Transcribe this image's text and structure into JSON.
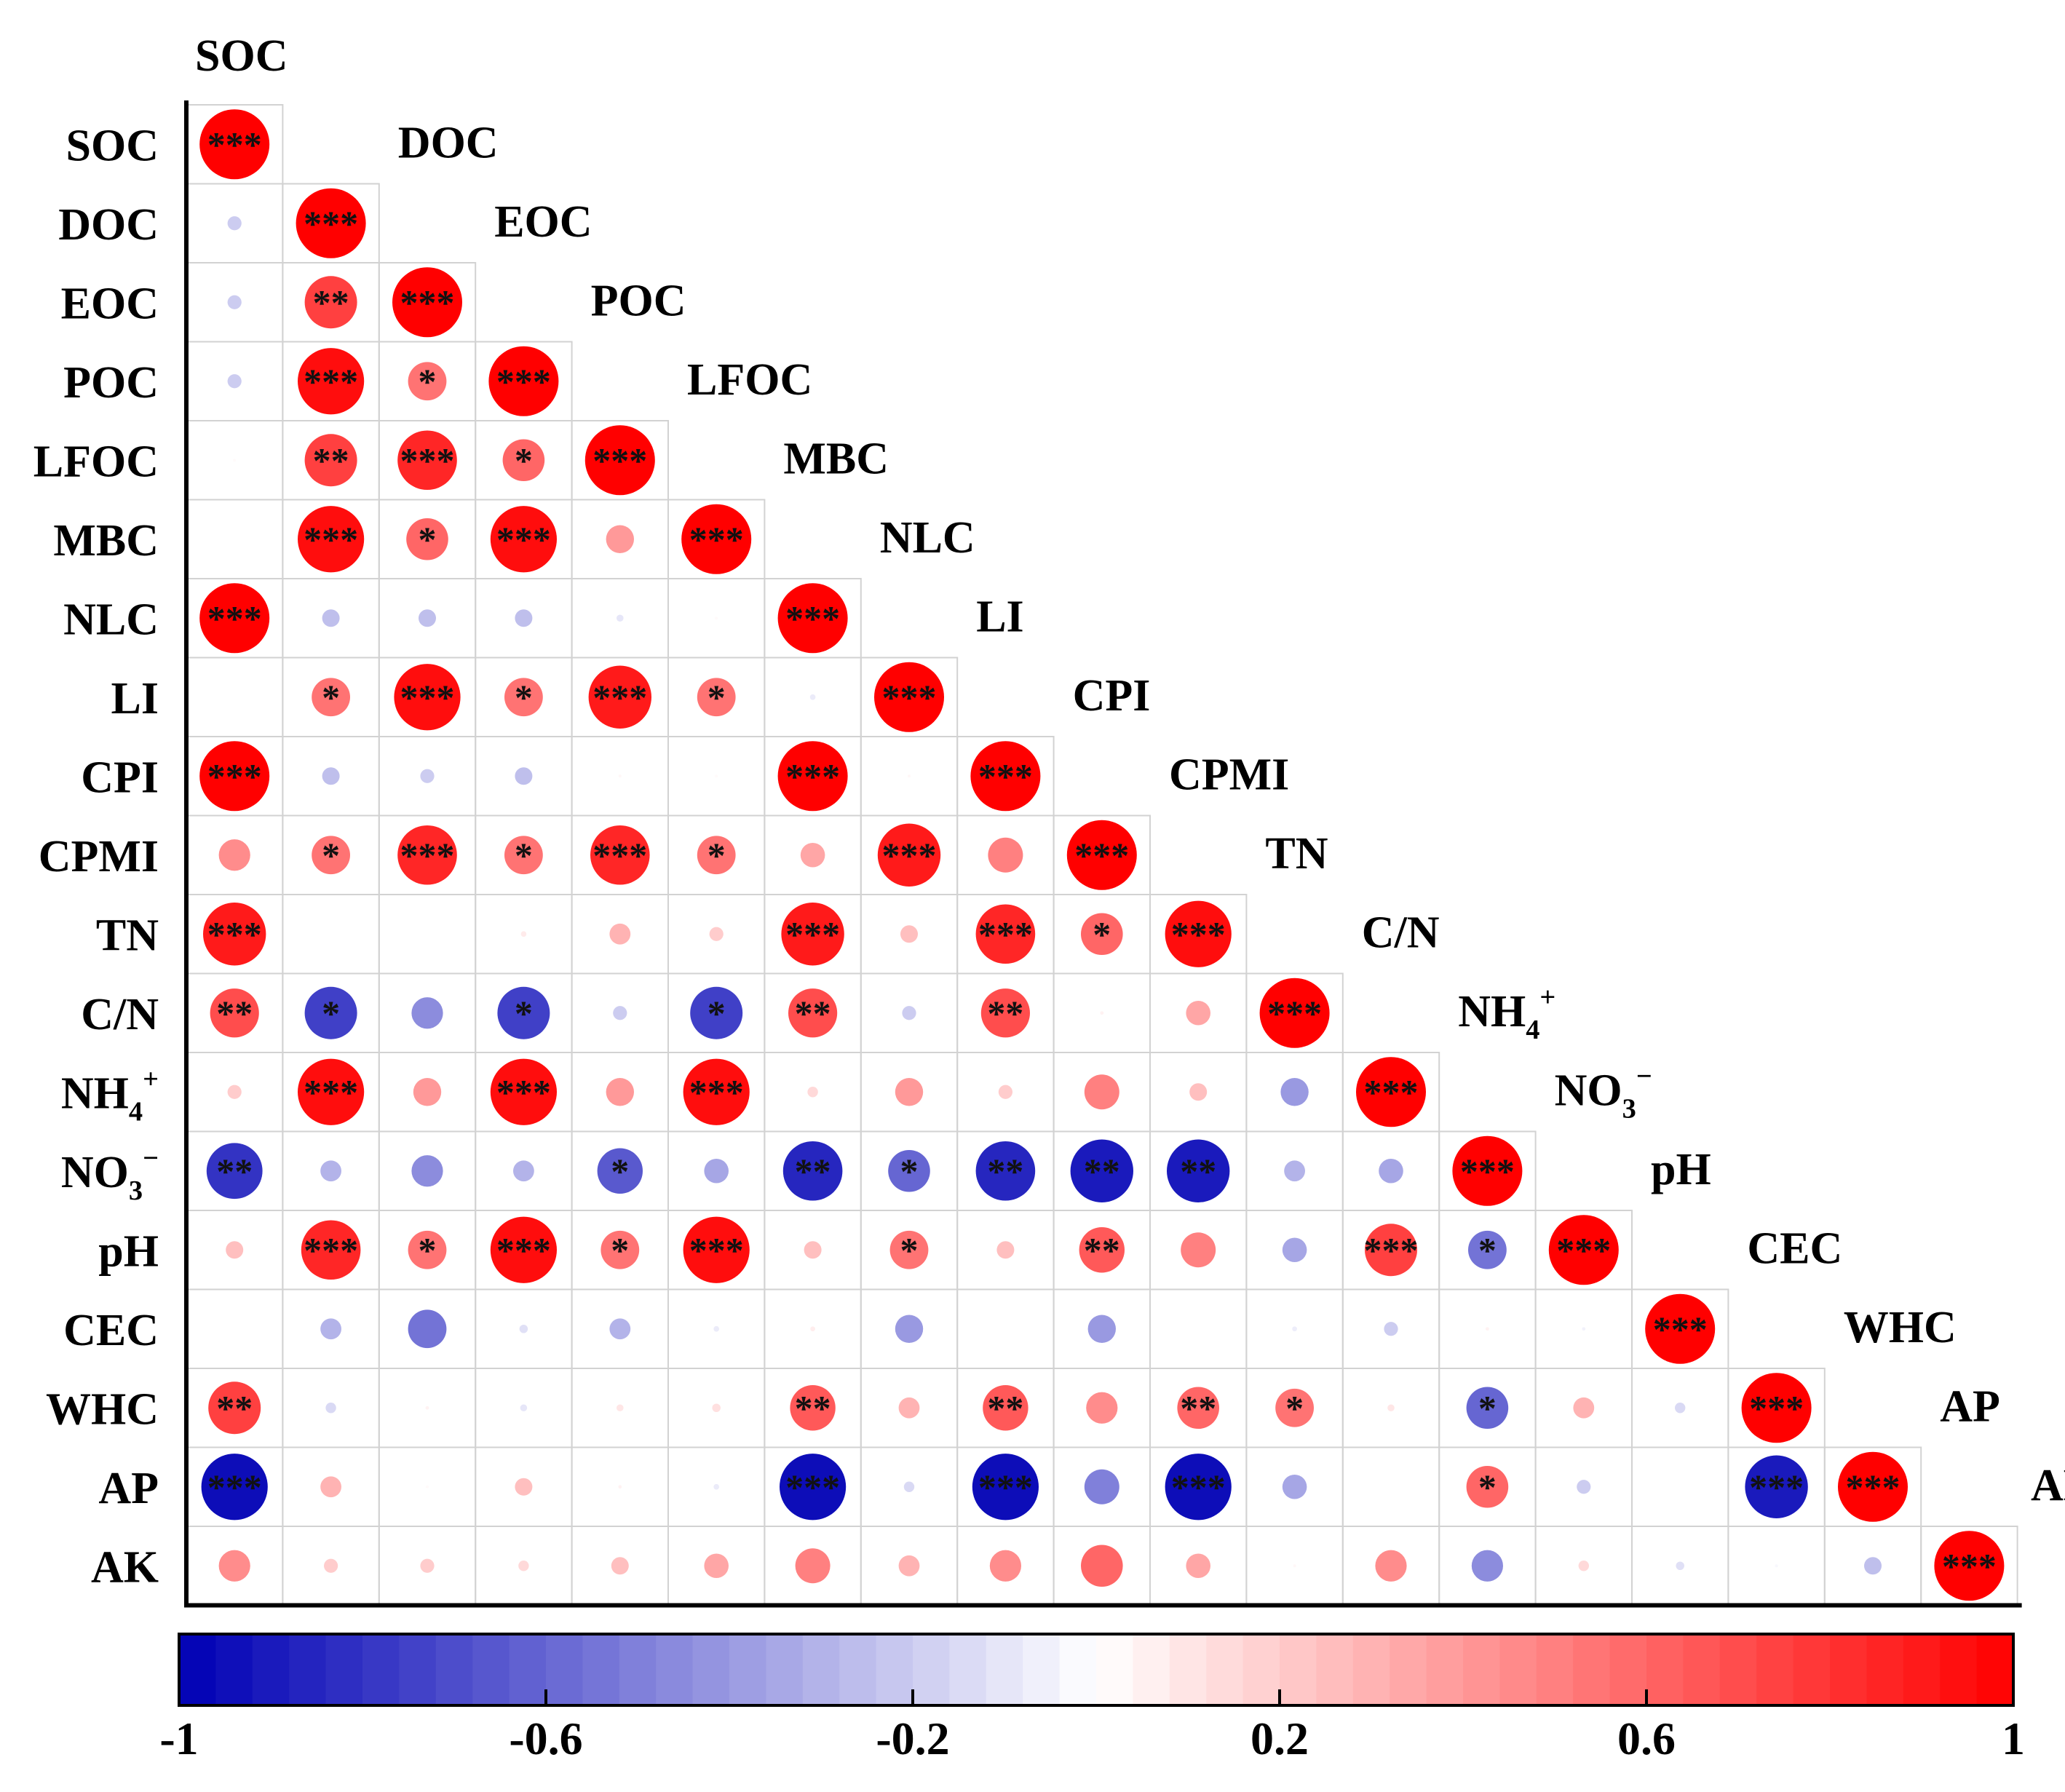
{
  "chart_data": {
    "type": "heatmap",
    "title": "",
    "variables": [
      {
        "name": "SOC",
        "sub": "",
        "sup": ""
      },
      {
        "name": "DOC",
        "sub": "",
        "sup": ""
      },
      {
        "name": "EOC",
        "sub": "",
        "sup": ""
      },
      {
        "name": "POC",
        "sub": "",
        "sup": ""
      },
      {
        "name": "LFOC",
        "sub": "",
        "sup": ""
      },
      {
        "name": "MBC",
        "sub": "",
        "sup": ""
      },
      {
        "name": "NLC",
        "sub": "",
        "sup": ""
      },
      {
        "name": "LI",
        "sub": "",
        "sup": ""
      },
      {
        "name": "CPI",
        "sub": "",
        "sup": ""
      },
      {
        "name": "CPMI",
        "sub": "",
        "sup": ""
      },
      {
        "name": "TN",
        "sub": "",
        "sup": ""
      },
      {
        "name": "C/N",
        "sub": "",
        "sup": ""
      },
      {
        "name": "NH",
        "sub": "4",
        "sup": "+"
      },
      {
        "name": "NO",
        "sub": "3",
        "sup": "−"
      },
      {
        "name": "pH",
        "sub": "",
        "sup": ""
      },
      {
        "name": "CEC",
        "sub": "",
        "sup": ""
      },
      {
        "name": "WHC",
        "sub": "",
        "sup": ""
      },
      {
        "name": "AP",
        "sub": "",
        "sup": ""
      },
      {
        "name": "AK",
        "sub": "",
        "sup": ""
      }
    ],
    "correlations": [
      [
        1
      ],
      [
        -0.2,
        1
      ],
      [
        -0.2,
        0.75,
        1
      ],
      [
        -0.2,
        0.95,
        0.55,
        1
      ],
      [
        0.02,
        0.75,
        0.85,
        0.6,
        1
      ],
      [
        0,
        0.95,
        0.6,
        0.95,
        0.4,
        1
      ],
      [
        1,
        -0.25,
        -0.25,
        -0.25,
        -0.1,
        0.02,
        1
      ],
      [
        0,
        0.55,
        0.95,
        0.55,
        0.9,
        0.55,
        -0.08,
        1
      ],
      [
        1,
        -0.25,
        -0.2,
        -0.25,
        0.03,
        0.02,
        1,
        0.03,
        1
      ],
      [
        0.45,
        0.55,
        0.85,
        0.55,
        0.85,
        0.55,
        0.35,
        0.9,
        0.5,
        1
      ],
      [
        0.9,
        0,
        0,
        0.08,
        0.3,
        0.2,
        0.9,
        0.25,
        0.85,
        0.6,
        0.95
      ],
      [
        0.7,
        -0.75,
        -0.45,
        -0.75,
        -0.2,
        -0.75,
        0.7,
        -0.2,
        0.7,
        0.05,
        0.35,
        1
      ],
      [
        0.2,
        0.95,
        0.4,
        0.95,
        0.4,
        0.95,
        0.15,
        0.4,
        0.2,
        0.5,
        0.25,
        -0.4,
        1
      ],
      [
        -0.8,
        -0.3,
        -0.45,
        -0.3,
        -0.65,
        -0.35,
        -0.85,
        -0.6,
        -0.85,
        -0.9,
        -0.9,
        -0.3,
        -0.35,
        1
      ],
      [
        0.25,
        0.85,
        0.55,
        0.95,
        0.55,
        0.95,
        0.25,
        0.55,
        0.25,
        0.65,
        0.5,
        -0.35,
        0.75,
        -0.55,
        1
      ],
      [
        0,
        -0.3,
        -0.55,
        -0.12,
        -0.3,
        -0.08,
        0.07,
        -0.4,
        0,
        -0.4,
        0,
        -0.07,
        -0.2,
        0.05,
        -0.05,
        1
      ],
      [
        0.75,
        -0.15,
        0.05,
        -0.1,
        0.1,
        0.12,
        0.65,
        0.3,
        0.65,
        0.45,
        0.6,
        0.55,
        0.1,
        -0.6,
        0.3,
        -0.15,
        1
      ],
      [
        -0.95,
        0.3,
        0.02,
        0.25,
        0.05,
        -0.08,
        -0.95,
        -0.15,
        -0.95,
        -0.5,
        -0.95,
        -0.35,
        0,
        0.6,
        -0.2,
        0,
        -0.9,
        1
      ],
      [
        0.45,
        0.2,
        0.2,
        0.15,
        0.25,
        0.35,
        0.5,
        0.3,
        0.45,
        0.6,
        0.35,
        0.03,
        0.45,
        -0.45,
        0.15,
        -0.12,
        -0.03,
        -0.25,
        1
      ]
    ],
    "significance": [
      [
        "***"
      ],
      [
        "",
        "***"
      ],
      [
        "",
        "**",
        "***"
      ],
      [
        "",
        "***",
        "*",
        "***"
      ],
      [
        "",
        "**",
        "***",
        "*",
        "***"
      ],
      [
        "",
        "***",
        "*",
        "***",
        "",
        "***"
      ],
      [
        "***",
        "",
        "",
        "",
        "",
        "",
        "***"
      ],
      [
        "",
        "*",
        "***",
        "*",
        "***",
        "*",
        "",
        "***"
      ],
      [
        "***",
        "",
        "",
        "",
        "",
        "",
        "***",
        "",
        "***"
      ],
      [
        "",
        "*",
        "***",
        "*",
        "***",
        "*",
        "",
        "***",
        "",
        "***"
      ],
      [
        "***",
        "",
        "",
        "",
        "",
        "",
        "***",
        "",
        "***",
        "*",
        "***"
      ],
      [
        "**",
        "*",
        "",
        "*",
        "",
        "*",
        "**",
        "",
        "**",
        "",
        "",
        "***"
      ],
      [
        "",
        "***",
        "",
        "***",
        "",
        "***",
        "",
        "",
        "",
        "",
        "",
        "",
        "***"
      ],
      [
        "**",
        "",
        "",
        "",
        "*",
        "",
        "**",
        "*",
        "**",
        "**",
        "**",
        "",
        "",
        "***"
      ],
      [
        "",
        "***",
        "*",
        "***",
        "*",
        "***",
        "",
        "*",
        "",
        "**",
        "",
        "",
        "***",
        "*",
        "***"
      ],
      [
        "",
        "",
        "",
        "",
        "",
        "",
        "",
        "",
        "",
        "",
        "",
        "",
        "",
        "",
        "",
        "***"
      ],
      [
        "**",
        "",
        "",
        "",
        "",
        "",
        "**",
        "",
        "**",
        "",
        "**",
        "*",
        "",
        "*",
        "",
        "",
        "***"
      ],
      [
        "***",
        "",
        "",
        "",
        "",
        "",
        "***",
        "",
        "***",
        "",
        "***",
        "",
        "",
        "*",
        "",
        "",
        "***",
        "***"
      ],
      [
        "",
        "",
        "",
        "",
        "",
        "",
        "",
        "",
        "",
        "",
        "",
        "",
        "",
        "",
        "",
        "",
        "",
        "",
        "***"
      ]
    ],
    "colorbar": {
      "range": [
        -1,
        1
      ],
      "ticks": [
        "-1",
        "-0.6",
        "-0.2",
        "0.2",
        "0.6",
        "1"
      ],
      "steps": 50
    },
    "colors": {
      "negative": "#0000b4",
      "neutral": "#ffffff",
      "positive": "#ff0000"
    }
  }
}
